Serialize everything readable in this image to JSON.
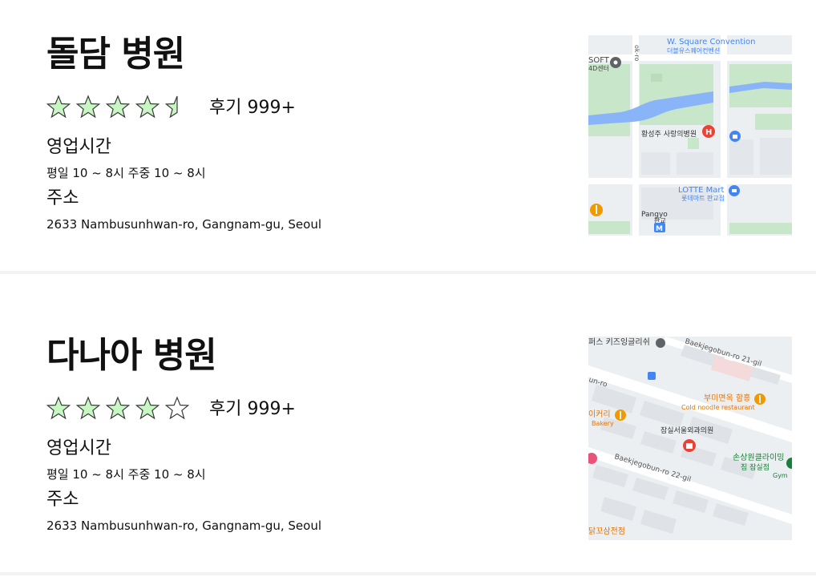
{
  "hospitals": [
    {
      "name": "돌담 병원",
      "rating": 4.5,
      "reviews_label": "후기 999+",
      "hours_label": "영업시간",
      "hours_value": "평일 10 ~ 8시  주중 10 ~ 8시",
      "address_label": "주소",
      "address_value": "2633 Nambusunhwan-ro, Gangnam-gu, Seoul",
      "map": {
        "place_1": "W. Square Convention",
        "place_1_ko": "더블유스퀘어컨벤션",
        "place_2": "SOFT",
        "place_2_sub": "4D센터",
        "place_3": "황성주 사랑의병원",
        "place_4": "LOTTE Mart",
        "place_4_ko": "롯데마트 판교점",
        "place_5": "Pangyo",
        "place_5_ko": "판교",
        "road": "ok-ro",
        "hospital_marker": "H",
        "subway_marker": "M"
      }
    },
    {
      "name": "다나아 병원",
      "rating": 4,
      "reviews_label": "후기 999+",
      "hours_label": "영업시간",
      "hours_value": "평일 10 ~ 8시  주중 10 ~ 8시",
      "address_label": "주소",
      "address_value": "2633 Nambusunhwan-ro, Gangnam-gu, Seoul",
      "map": {
        "place_1": "퍼스 키즈잉글리쉬",
        "road_1": "Baekjegobun-ro 21-gil",
        "road_2": "un-ro",
        "place_2": "부미면옥 함흥",
        "place_2_en": "Cold noodle restaurant",
        "place_3": "이커리",
        "place_3_en": "Bakery",
        "place_4": "잠실서울외과의원",
        "road_3": "Baekjegobun-ro 22-gil",
        "place_5": "손상원클라이밍",
        "place_5_sub": "짐 잠실점",
        "place_5_en": "Gym",
        "place_6": "닭꼬삼전점"
      }
    }
  ],
  "colors": {
    "star_fill": "#c9f7c4",
    "star_stroke": "#3a3a3a",
    "divider": "#f2f3f5",
    "map_green": "#c8e6c9",
    "map_water": "#8ab4f8",
    "map_red_pin": "#ea4335",
    "map_blue_pin": "#4285f4",
    "map_orange_pin": "#f29900"
  },
  "icons": [
    "star-icon",
    "half-star-icon",
    "empty-star-icon",
    "map-pin-icon"
  ]
}
